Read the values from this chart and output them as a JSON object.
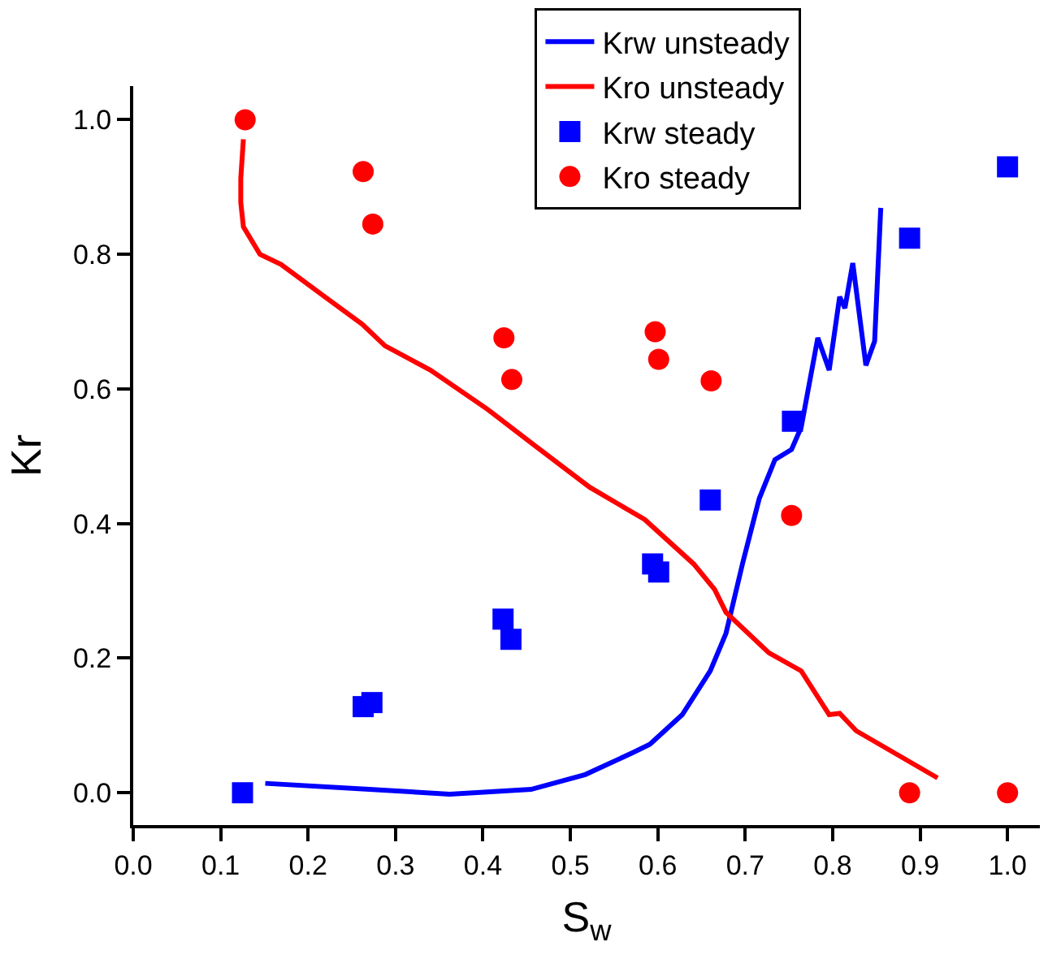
{
  "chart_data": {
    "type": "line",
    "xlabel": "S$_{w}$",
    "ylabel": "Kr",
    "xlim": [
      0,
      1.037
    ],
    "xticks": [
      {
        "value": 0,
        "label": "0.0"
      },
      0.1,
      0.2,
      0.3,
      0.4,
      0.5,
      0.6,
      0.7,
      0.8,
      0.9,
      {
        "value": 1,
        "label": "1.0"
      }
    ],
    "ylim": [
      -0.048,
      1.05
    ],
    "yticks": [
      {
        "value": 0,
        "label": "0.0"
      },
      0.2,
      0.4,
      0.6,
      0.8,
      {
        "value": 1,
        "label": "1.0"
      }
    ],
    "grid": false,
    "legend": "top",
    "series": [
      {
        "name": "Krw unsteady",
        "color": "#0000ff",
        "marker": "none",
        "line_style": "solid",
        "x": [
          0.151,
          0.27,
          0.362,
          0.455,
          0.517,
          0.572,
          0.591,
          0.628,
          0.66,
          0.678,
          0.697,
          0.716,
          0.734,
          0.753,
          0.764,
          0.783,
          0.796,
          0.808,
          0.814,
          0.823,
          0.838,
          0.848,
          0.855
        ],
        "values": [
          0.014,
          0.005,
          -0.002,
          0.005,
          0.027,
          0.06,
          0.072,
          0.116,
          0.181,
          0.237,
          0.341,
          0.437,
          0.495,
          0.51,
          0.543,
          0.676,
          0.628,
          0.737,
          0.72,
          0.787,
          0.635,
          0.671,
          0.869
        ]
      },
      {
        "name": "Kro unsteady",
        "color": "#ff0000",
        "marker": "none",
        "line_style": "solid",
        "x": [
          0.126,
          0.123,
          0.123,
          0.126,
          0.145,
          0.169,
          0.219,
          0.262,
          0.288,
          0.34,
          0.405,
          0.461,
          0.522,
          0.585,
          0.641,
          0.665,
          0.678,
          0.727,
          0.764,
          0.796,
          0.808,
          0.827,
          0.92
        ],
        "values": [
          0.971,
          0.913,
          0.877,
          0.841,
          0.8,
          0.785,
          0.737,
          0.696,
          0.664,
          0.628,
          0.57,
          0.514,
          0.454,
          0.406,
          0.34,
          0.302,
          0.268,
          0.208,
          0.181,
          0.116,
          0.118,
          0.092,
          0.022
        ]
      },
      {
        "name": "Krw steady",
        "type": "scatter",
        "color": "#0000ff",
        "marker": "square",
        "x": [
          0.125,
          0.263,
          0.273,
          0.423,
          0.432,
          0.594,
          0.601,
          0.66,
          0.754,
          0.888,
          1.0
        ],
        "values": [
          0.0,
          0.128,
          0.134,
          0.258,
          0.228,
          0.34,
          0.328,
          0.435,
          0.552,
          0.824,
          0.93
        ]
      },
      {
        "name": "Kro steady",
        "type": "scatter",
        "color": "#ff0000",
        "marker": "circle",
        "x": [
          0.128,
          0.263,
          0.274,
          0.424,
          0.433,
          0.597,
          0.601,
          0.661,
          0.753,
          0.888,
          1.0
        ],
        "values": [
          1.0,
          0.923,
          0.845,
          0.676,
          0.614,
          0.685,
          0.644,
          0.612,
          0.412,
          0.0,
          0.0
        ]
      }
    ]
  }
}
